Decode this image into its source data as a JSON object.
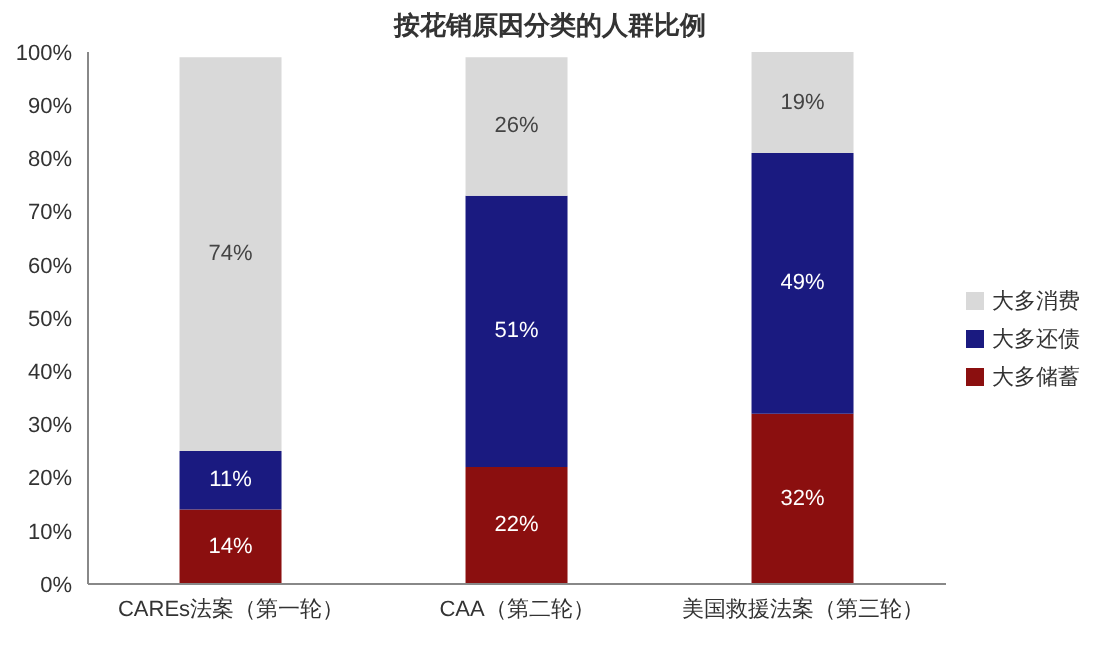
{
  "chart_data": {
    "type": "bar",
    "title": "按花销原因分类的人群比例",
    "categories": [
      "CAREs法案（第一轮）",
      "CAA（第二轮）",
      "美国救援法案（第三轮）"
    ],
    "stacked": true,
    "series": [
      {
        "name": "大多储蓄",
        "color": "#8b0f0f",
        "values": [
          14,
          22,
          32
        ],
        "value_labels": [
          "14%",
          "22%",
          "32%"
        ]
      },
      {
        "name": "大多还债",
        "color": "#1a1a80",
        "values": [
          11,
          51,
          49
        ],
        "value_labels": [
          "11%",
          "51%",
          "49%"
        ]
      },
      {
        "name": "大多消费",
        "color": "#d9d9d9",
        "values": [
          74,
          26,
          19
        ],
        "value_labels": [
          "74%",
          "26%",
          "19%"
        ]
      }
    ],
    "ylim": [
      0,
      100
    ],
    "yticks": [
      {
        "value": 0,
        "label": "0%"
      },
      {
        "value": 10,
        "label": "10%"
      },
      {
        "value": 20,
        "label": "20%"
      },
      {
        "value": 30,
        "label": "30%"
      },
      {
        "value": 40,
        "label": "40%"
      },
      {
        "value": 50,
        "label": "50%"
      },
      {
        "value": 60,
        "label": "60%"
      },
      {
        "value": 70,
        "label": "70%"
      },
      {
        "value": 80,
        "label": "80%"
      },
      {
        "value": 90,
        "label": "90%"
      },
      {
        "value": 100,
        "label": "100%"
      }
    ],
    "grid": false,
    "legend": "right"
  }
}
